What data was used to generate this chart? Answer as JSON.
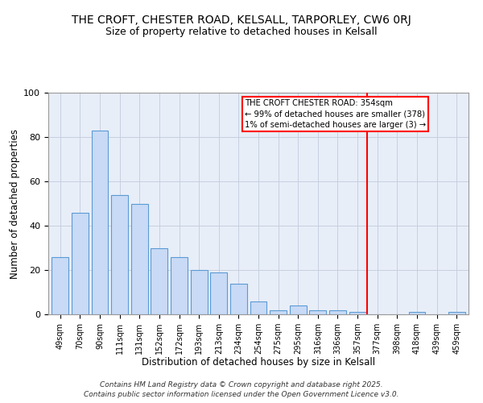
{
  "title": "THE CROFT, CHESTER ROAD, KELSALL, TARPORLEY, CW6 0RJ",
  "subtitle": "Size of property relative to detached houses in Kelsall",
  "xlabel": "Distribution of detached houses by size in Kelsall",
  "ylabel": "Number of detached properties",
  "bar_labels": [
    "49sqm",
    "70sqm",
    "90sqm",
    "111sqm",
    "131sqm",
    "152sqm",
    "172sqm",
    "193sqm",
    "213sqm",
    "234sqm",
    "254sqm",
    "275sqm",
    "295sqm",
    "316sqm",
    "336sqm",
    "357sqm",
    "377sqm",
    "398sqm",
    "418sqm",
    "439sqm",
    "459sqm"
  ],
  "bar_values": [
    26,
    46,
    83,
    54,
    50,
    30,
    26,
    20,
    19,
    14,
    6,
    2,
    4,
    2,
    2,
    1,
    0,
    0,
    1,
    0,
    1
  ],
  "bar_color": "#c8daf5",
  "bar_edge_color": "#5b9bd5",
  "vline_color": "#ff0000",
  "annotation_title": "THE CROFT CHESTER ROAD: 354sqm",
  "annotation_line1": "← 99% of detached houses are smaller (378)",
  "annotation_line2": "1% of semi-detached houses are larger (3) →",
  "ylim": [
    0,
    100
  ],
  "yticks": [
    0,
    20,
    40,
    60,
    80,
    100
  ],
  "footer1": "Contains HM Land Registry data © Crown copyright and database right 2025.",
  "footer2": "Contains public sector information licensed under the Open Government Licence v3.0.",
  "bg_color": "#ffffff",
  "plot_bg_color": "#e8eef8",
  "grid_color": "#c8d0e0"
}
